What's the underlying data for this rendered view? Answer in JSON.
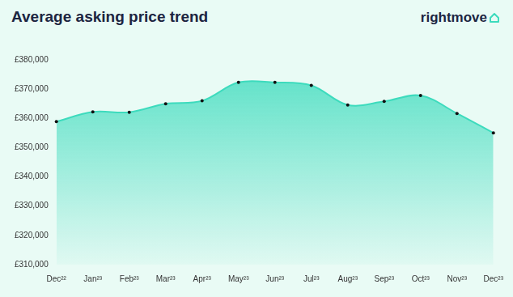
{
  "chart_data": {
    "type": "line",
    "title": "Average asking price trend",
    "source": "rightmove",
    "categories": [
      "Dec²²",
      "Jan²³",
      "Feb²³",
      "Mar²³",
      "Apr²³",
      "May²³",
      "Jun²³",
      "Jul²³",
      "Aug²³",
      "Sep²³",
      "Oct²³",
      "Nov²³",
      "Dec²³"
    ],
    "values": [
      358900,
      362200,
      362100,
      365000,
      366000,
      372300,
      372300,
      371300,
      364600,
      365800,
      367800,
      361700,
      355000
    ],
    "color": "#3ddbbd",
    "ylim": [
      310000,
      380000
    ],
    "yticks": [
      {
        "value": 310000,
        "label": "£310,000"
      },
      {
        "value": 320000,
        "label": "£320,000"
      },
      {
        "value": 330000,
        "label": "£330,000"
      },
      {
        "value": 340000,
        "label": "£340,000"
      },
      {
        "value": 350000,
        "label": "£350,000"
      },
      {
        "value": 360000,
        "label": "£360,000"
      },
      {
        "value": 370000,
        "label": "£370,000"
      },
      {
        "value": 380000,
        "label": "£380,000"
      }
    ],
    "grid": false,
    "marker": "circle"
  }
}
